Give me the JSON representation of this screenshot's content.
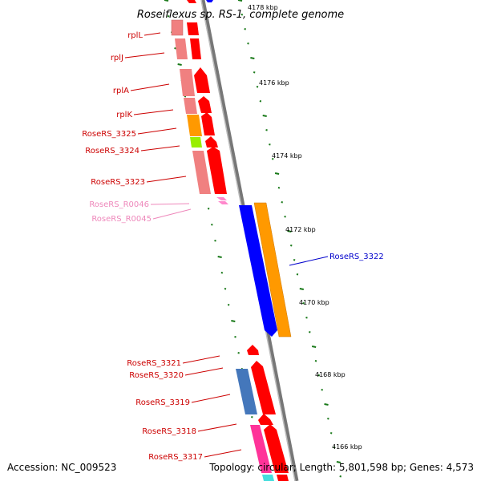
{
  "title": "Roseiflexus sp. RS-1, complete genome",
  "footer": {
    "accession": "Accession: NC_009523",
    "summary": "Topology: circular; Length: 5,801,598 bp; Genes: 4,573"
  },
  "colors": {
    "label_red": "#cc0000",
    "label_pink": "#ee88bb",
    "label_blue": "#0000cc",
    "backbone": "#888888",
    "tick_green": "#1a7a1a"
  },
  "scale_labels": [
    "4178 kbp",
    "4176 kbp",
    "4174 kbp",
    "4172 kbp",
    "4170 kbp",
    "4168 kbp",
    "4166 kbp"
  ],
  "genes": [
    {
      "name": "rplL",
      "color": "label_red"
    },
    {
      "name": "rplJ",
      "color": "label_red"
    },
    {
      "name": "rplA",
      "color": "label_red"
    },
    {
      "name": "rplK",
      "color": "label_red"
    },
    {
      "name": "RoseRS_3325",
      "color": "label_red"
    },
    {
      "name": "RoseRS_3324",
      "color": "label_red"
    },
    {
      "name": "RoseRS_3323",
      "color": "label_red"
    },
    {
      "name": "RoseRS_R0046",
      "color": "label_pink"
    },
    {
      "name": "RoseRS_R0045",
      "color": "label_pink"
    },
    {
      "name": "RoseRS_3322",
      "color": "label_blue"
    },
    {
      "name": "RoseRS_3321",
      "color": "label_red"
    },
    {
      "name": "RoseRS_3320",
      "color": "label_red"
    },
    {
      "name": "RoseRS_3319",
      "color": "label_red"
    },
    {
      "name": "RoseRS_3318",
      "color": "label_red"
    },
    {
      "name": "RoseRS_3317",
      "color": "label_red"
    }
  ]
}
